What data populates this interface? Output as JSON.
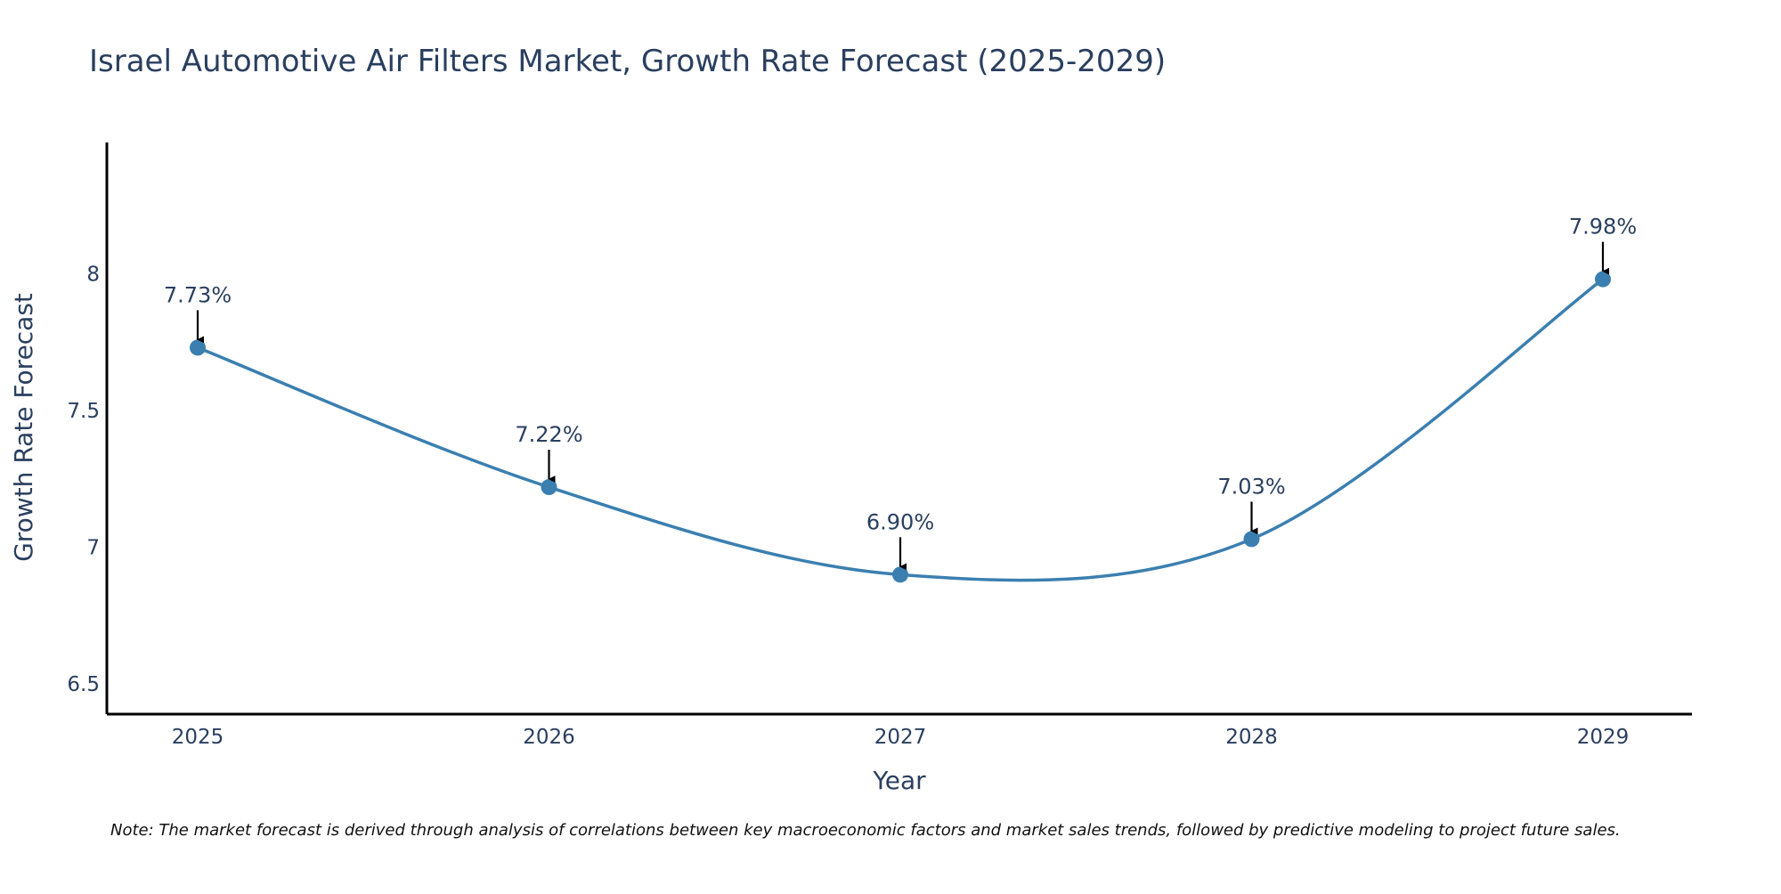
{
  "chart_data": {
    "type": "line",
    "title": "Israel Automotive Air Filters Market, Growth Rate Forecast (2025-2029)",
    "xlabel": "Year",
    "ylabel": "Growth Rate Forecast",
    "categories": [
      "2025",
      "2026",
      "2027",
      "2028",
      "2029"
    ],
    "values": [
      7.73,
      7.22,
      6.9,
      7.03,
      7.98
    ],
    "data_labels": [
      "7.73%",
      "7.22%",
      "6.90%",
      "7.03%",
      "7.98%"
    ],
    "ylim": [
      6.39,
      8.48
    ],
    "yticks": [
      6.5,
      7,
      7.5,
      8
    ],
    "ytick_labels": [
      "6.5",
      "7",
      "7.5",
      "8"
    ],
    "grid": false,
    "smoothing": "spline",
    "note": "Note: The market forecast is derived through analysis of correlations between key macroeconomic factors and market sales trends, followed by predictive modeling to project future sales."
  },
  "colors": {
    "line": "#3b7fb0",
    "marker": "#3b7fb0",
    "axis": "#000000",
    "text": "#2a3f5f",
    "arrow": "#000000"
  }
}
